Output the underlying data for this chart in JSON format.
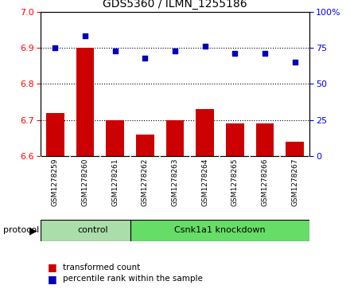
{
  "title": "GDS5360 / ILMN_1255186",
  "samples": [
    "GSM1278259",
    "GSM1278260",
    "GSM1278261",
    "GSM1278262",
    "GSM1278263",
    "GSM1278264",
    "GSM1278265",
    "GSM1278266",
    "GSM1278267"
  ],
  "bar_values": [
    6.72,
    6.9,
    6.7,
    6.66,
    6.7,
    6.73,
    6.69,
    6.69,
    6.64
  ],
  "scatter_values": [
    75,
    83,
    73,
    68,
    73,
    76,
    71,
    71,
    65
  ],
  "bar_bottom": 6.6,
  "ylim_left": [
    6.6,
    7.0
  ],
  "ylim_right": [
    0,
    100
  ],
  "yticks_left": [
    6.6,
    6.7,
    6.8,
    6.9,
    7.0
  ],
  "yticks_right": [
    0,
    25,
    50,
    75,
    100
  ],
  "yticklabels_right": [
    "0",
    "25",
    "50",
    "75",
    "100%"
  ],
  "bar_color": "#cc0000",
  "scatter_color": "#0000bb",
  "grid_color": "#000000",
  "tick_area_color": "#cccccc",
  "control_bg_color": "#aaddaa",
  "knockdown_bg_color": "#66dd66",
  "control_label": "control",
  "knockdown_label": "Csnk1a1 knockdown",
  "protocol_label": "protocol",
  "legend_bar": "transformed count",
  "legend_scatter": "percentile rank within the sample",
  "n_control": 3,
  "n_knockdown": 6,
  "figsize": [
    4.4,
    3.63
  ],
  "dpi": 100
}
